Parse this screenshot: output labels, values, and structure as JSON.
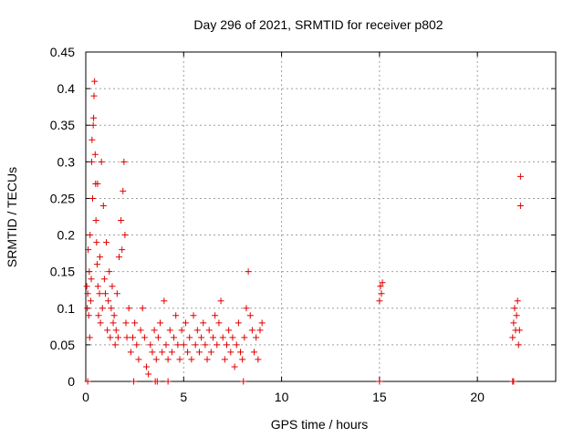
{
  "chart_data": {
    "type": "scatter",
    "title": "Day 296 of 2021, SRMTID for receiver p802",
    "xlabel": "GPS time / hours",
    "ylabel": "SRMTID / TECUs",
    "xlim": [
      0,
      24
    ],
    "ylim": [
      0,
      0.45
    ],
    "xticks": [
      0,
      5,
      10,
      15,
      20
    ],
    "xtick_labels": [
      "0",
      "5",
      "10",
      "15",
      "20"
    ],
    "yticks": [
      0,
      0.05,
      0.1,
      0.15,
      0.2,
      0.25,
      0.3,
      0.35,
      0.4,
      0.45
    ],
    "ytick_labels": [
      "0",
      "0.05",
      "0.1",
      "0.15",
      "0.2",
      "0.25",
      "0.3",
      "0.35",
      "0.4",
      "0.45"
    ],
    "grid": true,
    "marker": "plus",
    "color": "#e00000",
    "series": [
      {
        "name": "p802",
        "points": [
          [
            0.05,
            0.13
          ],
          [
            0.08,
            0.1
          ],
          [
            0.1,
            0.12
          ],
          [
            0.12,
            0.18
          ],
          [
            0.15,
            0.09
          ],
          [
            0.18,
            0.15
          ],
          [
            0.2,
            0.06
          ],
          [
            0.22,
            0.2
          ],
          [
            0.25,
            0.11
          ],
          [
            0.28,
            0.14
          ],
          [
            0.3,
            0.3
          ],
          [
            0.32,
            0.33
          ],
          [
            0.35,
            0.25
          ],
          [
            0.38,
            0.35
          ],
          [
            0.4,
            0.36
          ],
          [
            0.42,
            0.39
          ],
          [
            0.45,
            0.41
          ],
          [
            0.48,
            0.31
          ],
          [
            0.5,
            0.27
          ],
          [
            0.52,
            0.22
          ],
          [
            0.55,
            0.19
          ],
          [
            0.58,
            0.16
          ],
          [
            0.6,
            0.27
          ],
          [
            0.62,
            0.13
          ],
          [
            0.65,
            0.09
          ],
          [
            0.7,
            0.12
          ],
          [
            0.72,
            0.17
          ],
          [
            0.75,
            0.08
          ],
          [
            0.8,
            0.3
          ],
          [
            0.85,
            0.1
          ],
          [
            0.9,
            0.24
          ],
          [
            0.95,
            0.14
          ],
          [
            1.0,
            0.12
          ],
          [
            1.05,
            0.19
          ],
          [
            1.1,
            0.07
          ],
          [
            1.15,
            0.11
          ],
          [
            1.2,
            0.15
          ],
          [
            1.25,
            0.06
          ],
          [
            1.3,
            0.1
          ],
          [
            1.35,
            0.13
          ],
          [
            1.4,
            0.08
          ],
          [
            1.45,
            0.09
          ],
          [
            1.5,
            0.05
          ],
          [
            1.55,
            0.07
          ],
          [
            1.6,
            0.12
          ],
          [
            1.65,
            0.06
          ],
          [
            1.7,
            0.17
          ],
          [
            1.8,
            0.22
          ],
          [
            1.85,
            0.18
          ],
          [
            1.9,
            0.26
          ],
          [
            1.95,
            0.3
          ],
          [
            2.0,
            0.2
          ],
          [
            2.05,
            0.08
          ],
          [
            2.1,
            0.06
          ],
          [
            2.2,
            0.1
          ],
          [
            2.3,
            0.04
          ],
          [
            2.4,
            0.06
          ],
          [
            2.5,
            0.08
          ],
          [
            2.6,
            0.05
          ],
          [
            2.7,
            0.03
          ],
          [
            2.8,
            0.07
          ],
          [
            2.9,
            0.1
          ],
          [
            3.0,
            0.06
          ],
          [
            3.1,
            0.02
          ],
          [
            3.2,
            0.01
          ],
          [
            3.3,
            0.05
          ],
          [
            3.4,
            0.04
          ],
          [
            3.5,
            0.07
          ],
          [
            3.6,
            0.03
          ],
          [
            3.7,
            0.06
          ],
          [
            3.8,
            0.08
          ],
          [
            3.9,
            0.04
          ],
          [
            4.0,
            0.11
          ],
          [
            4.1,
            0.05
          ],
          [
            4.2,
            0.03
          ],
          [
            4.3,
            0.07
          ],
          [
            4.4,
            0.04
          ],
          [
            4.5,
            0.06
          ],
          [
            4.6,
            0.09
          ],
          [
            4.7,
            0.05
          ],
          [
            4.8,
            0.03
          ],
          [
            4.9,
            0.07
          ],
          [
            5.0,
            0.05
          ],
          [
            5.1,
            0.08
          ],
          [
            5.2,
            0.04
          ],
          [
            5.3,
            0.06
          ],
          [
            5.4,
            0.03
          ],
          [
            5.5,
            0.09
          ],
          [
            5.6,
            0.05
          ],
          [
            5.7,
            0.07
          ],
          [
            5.8,
            0.04
          ],
          [
            5.9,
            0.06
          ],
          [
            6.0,
            0.08
          ],
          [
            6.1,
            0.05
          ],
          [
            6.2,
            0.03
          ],
          [
            6.3,
            0.07
          ],
          [
            6.4,
            0.04
          ],
          [
            6.5,
            0.06
          ],
          [
            6.6,
            0.09
          ],
          [
            6.7,
            0.05
          ],
          [
            6.8,
            0.08
          ],
          [
            6.9,
            0.11
          ],
          [
            7.0,
            0.06
          ],
          [
            7.1,
            0.03
          ],
          [
            7.2,
            0.05
          ],
          [
            7.3,
            0.07
          ],
          [
            7.4,
            0.04
          ],
          [
            7.5,
            0.06
          ],
          [
            7.6,
            0.02
          ],
          [
            7.7,
            0.05
          ],
          [
            7.8,
            0.08
          ],
          [
            7.9,
            0.04
          ],
          [
            8.0,
            0.03
          ],
          [
            8.1,
            0.06
          ],
          [
            8.2,
            0.1
          ],
          [
            8.3,
            0.15
          ],
          [
            8.4,
            0.09
          ],
          [
            8.5,
            0.07
          ],
          [
            8.6,
            0.04
          ],
          [
            8.7,
            0.06
          ],
          [
            8.8,
            0.03
          ],
          [
            8.9,
            0.07
          ],
          [
            9.0,
            0.08
          ],
          [
            15.0,
            0.11
          ],
          [
            15.05,
            0.13
          ],
          [
            15.1,
            0.12
          ],
          [
            15.15,
            0.135
          ],
          [
            21.8,
            0.06
          ],
          [
            21.85,
            0.08
          ],
          [
            21.9,
            0.1
          ],
          [
            21.95,
            0.07
          ],
          [
            22.0,
            0.09
          ],
          [
            22.05,
            0.11
          ],
          [
            22.1,
            0.05
          ],
          [
            22.15,
            0.07
          ],
          [
            22.2,
            0.24
          ],
          [
            22.2,
            0.28
          ],
          [
            0.1,
            0.0
          ],
          [
            2.45,
            0.0
          ],
          [
            3.55,
            0.0
          ],
          [
            3.65,
            0.0
          ],
          [
            4.2,
            0.0
          ],
          [
            8.05,
            0.0
          ],
          [
            15.0,
            0.0
          ],
          [
            21.8,
            0.0
          ],
          [
            21.85,
            0.0
          ]
        ]
      }
    ]
  }
}
